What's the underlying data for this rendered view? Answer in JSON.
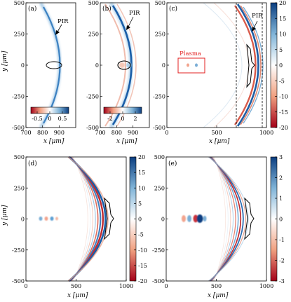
{
  "chart_data": [
    {
      "panel": "(a)",
      "type": "heatmap",
      "x_label": "x [μm]",
      "y_label": "y [μm]",
      "x_ticks": [
        700,
        800,
        900
      ],
      "y_ticks": [
        -500,
        -250,
        0,
        250,
        500
      ],
      "xlim": [
        700,
        1000
      ],
      "ylim": [
        -500,
        500
      ],
      "colorbar_ticks": [
        "-0.5",
        "0",
        "0.5"
      ],
      "colorbar_range": [
        -0.75,
        0.75
      ],
      "annotations": [
        "PIR"
      ]
    },
    {
      "panel": "(b)",
      "type": "heatmap",
      "x_label": "x [μm]",
      "y_label": "",
      "x_ticks": [
        700,
        800,
        900
      ],
      "y_ticks": [
        -500,
        -250,
        0,
        250,
        500
      ],
      "xlim": [
        700,
        1000
      ],
      "ylim": [
        -500,
        500
      ],
      "colorbar_ticks": [
        "-2",
        "0",
        "2"
      ],
      "colorbar_range": [
        -3,
        3
      ],
      "annotations": [
        "PIR"
      ]
    },
    {
      "panel": "(c)",
      "type": "heatmap",
      "x_label": "x [μm]",
      "y_label": "",
      "x_ticks": [
        0,
        500,
        1000
      ],
      "y_ticks": [
        -500,
        -250,
        0,
        250,
        500
      ],
      "xlim": [
        0,
        1000
      ],
      "ylim": [
        -500,
        500
      ],
      "colorbar_ticks": [
        "20",
        "15",
        "10",
        "5",
        "0",
        "-5",
        "-10",
        "-15",
        "-20"
      ],
      "colorbar_range": [
        -20,
        20
      ],
      "annotations": [
        "PIR",
        "Plasma"
      ],
      "dashed_lines_x": [
        700,
        960
      ]
    },
    {
      "panel": "(d)",
      "type": "heatmap",
      "x_label": "x [μm]",
      "y_label": "y [μm]",
      "x_ticks": [
        0,
        500,
        1000
      ],
      "y_ticks": [
        -500,
        -250,
        0,
        250,
        500
      ],
      "xlim": [
        0,
        1000
      ],
      "ylim": [
        -500,
        500
      ],
      "colorbar_ticks": [
        "20",
        "15",
        "10",
        "5",
        "0",
        "-5",
        "-10",
        "-15",
        "-20"
      ],
      "colorbar_range": [
        -20,
        20
      ]
    },
    {
      "panel": "(e)",
      "type": "heatmap",
      "x_label": "x [μm]",
      "y_label": "",
      "x_ticks": [
        0,
        500,
        1000
      ],
      "y_ticks": [
        -500,
        -250,
        0,
        250,
        500
      ],
      "xlim": [
        0,
        1000
      ],
      "ylim": [
        -500,
        500
      ],
      "colorbar_ticks": [
        "3",
        "2",
        "1",
        "0",
        "-1",
        "-2",
        "-3"
      ],
      "colorbar_range": [
        -3,
        3
      ]
    }
  ]
}
